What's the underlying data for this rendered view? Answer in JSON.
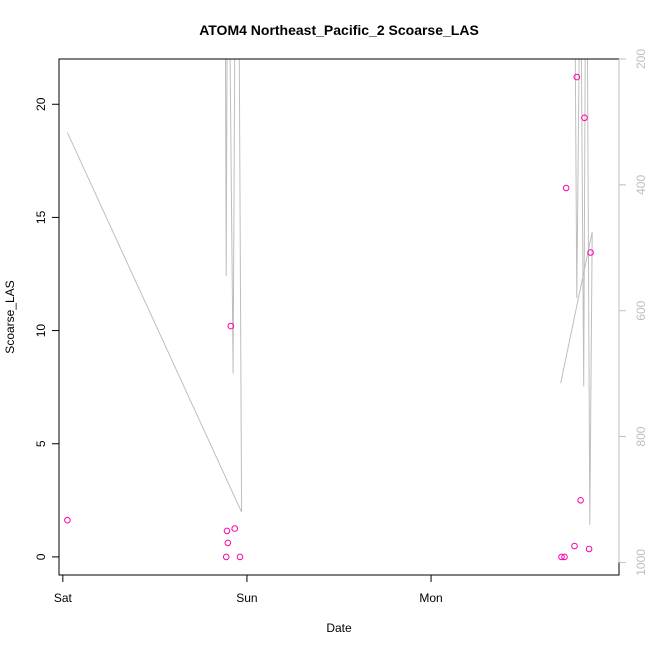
{
  "chart_data": {
    "type": "scatter",
    "title": "ATOM4 Northeast_Pacific_2 Scoarse_LAS",
    "xlabel": "Date",
    "ylabel": "Scoarse_LAS",
    "x_ticks": [
      {
        "label": "Sat",
        "t": 0
      },
      {
        "label": "Sun",
        "t": 24
      },
      {
        "label": "Mon",
        "t": 48
      }
    ],
    "xlim": [
      -0.5,
      72.5
    ],
    "ylim": [
      -0.8,
      22
    ],
    "y_ticks": [
      0,
      5,
      10,
      15,
      20
    ],
    "right_axis": {
      "label": "",
      "inverted": true,
      "lim": [
        200,
        1020
      ],
      "ticks": [
        200,
        400,
        600,
        800,
        1000
      ],
      "color": "#bebebe"
    },
    "series": [
      {
        "type": "scatter",
        "color": "#ff00aa",
        "points": [
          {
            "t": 0.6,
            "y": 1.62
          },
          {
            "t": 21.3,
            "y": 0.0
          },
          {
            "t": 21.4,
            "y": 1.15
          },
          {
            "t": 21.5,
            "y": 0.62
          },
          {
            "t": 21.9,
            "y": 10.2
          },
          {
            "t": 22.4,
            "y": 1.25
          },
          {
            "t": 23.1,
            "y": 0.0
          },
          {
            "t": 65.0,
            "y": 0.0
          },
          {
            "t": 65.4,
            "y": 0.0
          },
          {
            "t": 65.6,
            "y": 16.3
          },
          {
            "t": 66.7,
            "y": 0.48
          },
          {
            "t": 67.0,
            "y": 21.2
          },
          {
            "t": 67.5,
            "y": 2.5
          },
          {
            "t": 68.0,
            "y": 19.4
          },
          {
            "t": 68.6,
            "y": 0.35
          },
          {
            "t": 68.8,
            "y": 13.45
          }
        ]
      },
      {
        "type": "line",
        "axis": "right",
        "color": "#bebebe",
        "points": [
          {
            "t": 0.6,
            "y": 317
          },
          {
            "t": 23.3,
            "y": 920
          },
          {
            "t": 23.0,
            "y": 200
          },
          {
            "t": 22.4,
            "y": 200
          },
          {
            "t": 22.2,
            "y": 700
          },
          {
            "t": 21.8,
            "y": 200
          },
          {
            "t": 21.4,
            "y": 200
          },
          {
            "t": 21.3,
            "y": 545
          },
          {
            "t": 21.2,
            "y": 200
          },
          {
            "t": 65.0,
            "y": 200
          },
          {
            "t": 65.6,
            "y": 200
          },
          {
            "t": 66.4,
            "y": 200
          },
          {
            "t": 66.8,
            "y": 200
          },
          {
            "t": 67.0,
            "y": 580
          },
          {
            "t": 67.3,
            "y": 200
          },
          {
            "t": 67.6,
            "y": 200
          },
          {
            "t": 67.9,
            "y": 720
          },
          {
            "t": 68.1,
            "y": 200
          },
          {
            "t": 68.4,
            "y": 200
          },
          {
            "t": 68.7,
            "y": 940
          },
          {
            "t": 69.0,
            "y": 475
          },
          {
            "t": 64.9,
            "y": 715
          }
        ]
      }
    ]
  }
}
